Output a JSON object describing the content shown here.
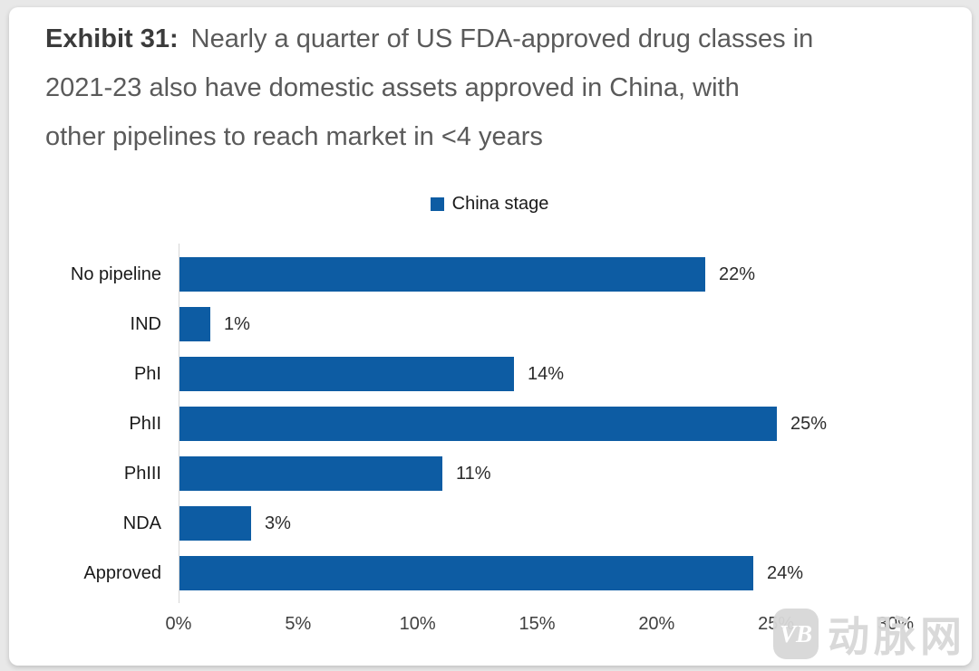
{
  "page": {
    "background_color": "#e8e8e8",
    "card_color": "#ffffff"
  },
  "title": {
    "prefix": "Exhibit 31:",
    "lines": [
      "Nearly a quarter of US FDA-approved drug classes in",
      "2021-23 also have domestic assets approved in China, with",
      "other pipelines to reach market in <4 years"
    ],
    "full_text": "Exhibit 31: Nearly a quarter of US FDA-approved drug classes in 2021-23 also have domestic assets approved in China, with other pipelines to reach market in <4 years"
  },
  "legend": {
    "label": "China stage",
    "swatch_color": "#0d5ca3",
    "position": "top-center"
  },
  "chart_data": {
    "type": "bar",
    "orientation": "horizontal",
    "series_name": "China stage",
    "categories": [
      "No pipeline",
      "IND",
      "PhI",
      "PhII",
      "PhIII",
      "NDA",
      "Approved"
    ],
    "values": [
      22,
      1,
      14,
      25,
      11,
      3,
      24
    ],
    "value_labels": [
      "22%",
      "1%",
      "14%",
      "25%",
      "11%",
      "3%",
      "24%"
    ],
    "xlabel": "",
    "ylabel": "",
    "xlim": [
      0,
      30
    ],
    "x_ticks": [
      "0%",
      "5%",
      "10%",
      "15%",
      "20%",
      "25%",
      "30%"
    ],
    "bar_color": "#0d5ca3",
    "grid": false,
    "data_labels": "outside-end"
  },
  "watermark": {
    "logo_text": "VB",
    "text": "动脉网"
  }
}
